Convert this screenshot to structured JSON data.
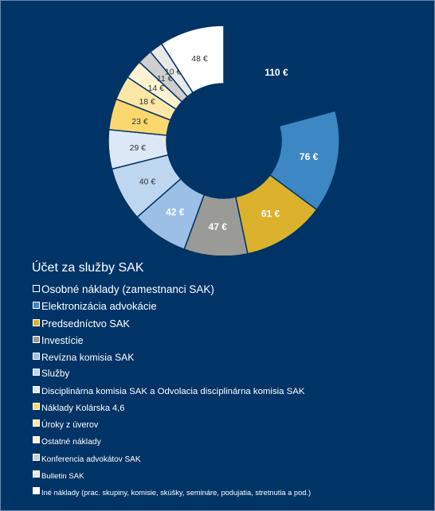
{
  "chart_data": {
    "type": "pie",
    "variant": "donut",
    "title": "Účet za služby SAK",
    "legend_position": "bottom-left",
    "unit": "€",
    "slices": [
      {
        "label": "Osobné náklady (zamestnanci SAK)",
        "value": 110,
        "value_label": "110 €",
        "color": "#003466"
      },
      {
        "label": "Elektronizácia advokácie",
        "value": 76,
        "value_label": "76 €",
        "color": "#3c87c4"
      },
      {
        "label": "Predsedníctvo SAK",
        "value": 61,
        "value_label": "61 €",
        "color": "#dcb22d"
      },
      {
        "label": "Investície",
        "value": 47,
        "value_label": "47 €",
        "color": "#9a9a96"
      },
      {
        "label": "Revízna komisia SAK",
        "value": 42,
        "value_label": "42 €",
        "color": "#9cbfe6"
      },
      {
        "label": "Služby",
        "value": 40,
        "value_label": "40 €",
        "color": "#bed6ef"
      },
      {
        "label": "Disciplinárna komisia SAK a Odvolacia disciplinárna komisia SAK",
        "value": 29,
        "value_label": "29 €",
        "color": "#dde8f6"
      },
      {
        "label": "Náklady Kolárska 4,6",
        "value": 23,
        "value_label": "23 €",
        "color": "#fbd86e"
      },
      {
        "label": "Úroky z úverov",
        "value": 18,
        "value_label": "18 €",
        "color": "#fde7a6"
      },
      {
        "label": "Ostatné náklady",
        "value": 14,
        "value_label": "14 €",
        "color": "#fef3d2"
      },
      {
        "label": "Konferencia advokátov SAK",
        "value": 11,
        "value_label": "11 €",
        "color": "#cfcfcf"
      },
      {
        "label": "Bulletin SAK",
        "value": 10,
        "value_label": "10 €",
        "color": "#e9e9e9"
      },
      {
        "label": "Iné náklady (prac. skupiny, komisie, skúšky, semináre, podujatia, stretnutia a pod.)",
        "value": 48,
        "value_label": "48 €",
        "color": "#ffffff"
      }
    ]
  }
}
